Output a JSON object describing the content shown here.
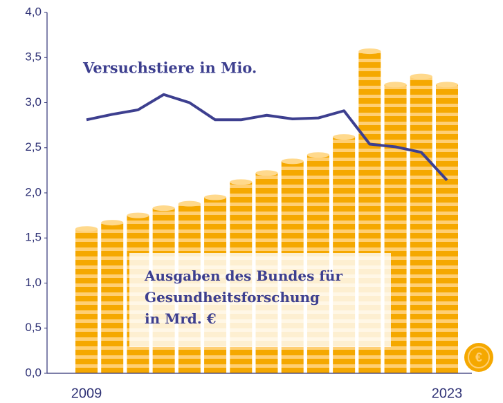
{
  "chart_data": {
    "type": "bar",
    "categories": [
      "2009",
      null,
      null,
      null,
      null,
      null,
      null,
      null,
      null,
      null,
      null,
      null,
      null,
      null,
      "2023"
    ],
    "series": [
      {
        "name": "Ausgaben des Bundes für\nGesundheitsforschung\nin Mrd. €",
        "color": "#f5a800",
        "values": [
          1.6,
          1.67,
          1.75,
          1.83,
          1.88,
          1.95,
          2.12,
          2.22,
          2.35,
          2.42,
          2.62,
          3.57,
          3.2,
          3.29,
          3.2
        ]
      },
      {
        "name": "Versuchstiere in Mio.",
        "color": "#3d3f8f",
        "type": "line",
        "values": [
          2.81,
          2.87,
          2.92,
          3.09,
          3.0,
          2.81,
          2.81,
          2.86,
          2.82,
          2.83,
          2.91,
          2.54,
          2.51,
          2.45,
          2.14
        ]
      }
    ],
    "ylim": [
      0,
      4
    ],
    "yticks": [
      {
        "value": 0,
        "label": "0,0"
      },
      {
        "value": 0.5,
        "label": "0,5"
      },
      {
        "value": 1,
        "label": "1,0"
      },
      {
        "value": 1.5,
        "label": "1,5"
      },
      {
        "value": 2,
        "label": "2,0"
      },
      {
        "value": 2.5,
        "label": "2,5"
      },
      {
        "value": 3,
        "label": "3,0"
      },
      {
        "value": 3.5,
        "label": "3,5"
      },
      {
        "value": 4,
        "label": "4,0"
      }
    ]
  }
}
